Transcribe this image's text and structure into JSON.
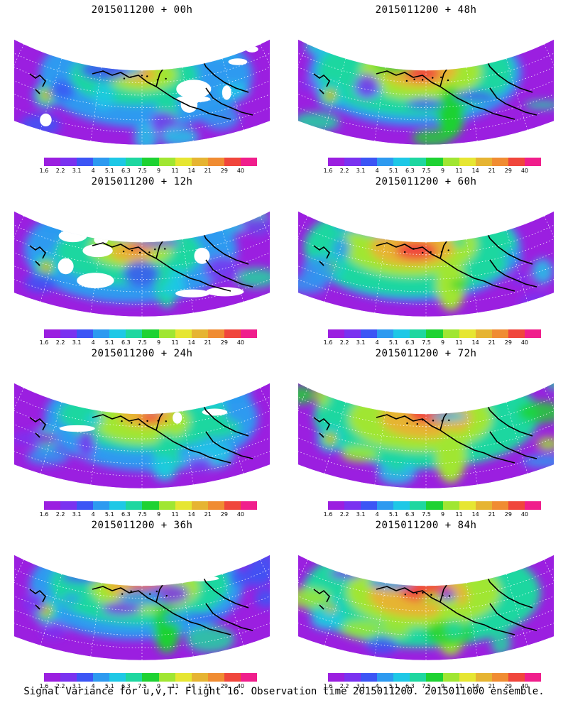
{
  "panels": [
    {
      "title": "2015011200 + 00h",
      "col": 0,
      "row": 0,
      "intensity": 0.15,
      "whiteness": 0.55,
      "seed": 1
    },
    {
      "title": "2015011200 + 48h",
      "col": 1,
      "row": 0,
      "intensity": 0.55,
      "whiteness": 0.0,
      "seed": 2
    },
    {
      "title": "2015011200 + 12h",
      "col": 0,
      "row": 1,
      "intensity": 0.25,
      "whiteness": 0.42,
      "seed": 3
    },
    {
      "title": "2015011200 + 60h",
      "col": 1,
      "row": 1,
      "intensity": 0.65,
      "whiteness": 0.0,
      "seed": 4
    },
    {
      "title": "2015011200 + 24h",
      "col": 0,
      "row": 2,
      "intensity": 0.35,
      "whiteness": 0.25,
      "seed": 5
    },
    {
      "title": "2015011200 + 72h",
      "col": 1,
      "row": 2,
      "intensity": 0.72,
      "whiteness": 0.0,
      "seed": 6
    },
    {
      "title": "2015011200 + 36h",
      "col": 0,
      "row": 3,
      "intensity": 0.45,
      "whiteness": 0.12,
      "seed": 7
    },
    {
      "title": "2015011200 + 84h",
      "col": 1,
      "row": 3,
      "intensity": 0.8,
      "whiteness": 0.0,
      "seed": 8
    }
  ],
  "colorbar": {
    "colors": [
      "#9b1fe0",
      "#7a32f0",
      "#3c55f5",
      "#2d9af0",
      "#1ec8e6",
      "#1ed7a0",
      "#1ed232",
      "#a0e632",
      "#e6e632",
      "#e6b432",
      "#f08c32",
      "#f0463c",
      "#f01e8c"
    ],
    "labels": [
      "1.6",
      "2.2",
      "3.1",
      "4",
      "5.1",
      "6.3",
      "7.5",
      "9",
      "11",
      "14",
      "21",
      "29",
      "40"
    ]
  },
  "footer": "Signal Variance for u,v,T. Flight 16. Observation time 2015011200. 2015011000 ensemble."
}
